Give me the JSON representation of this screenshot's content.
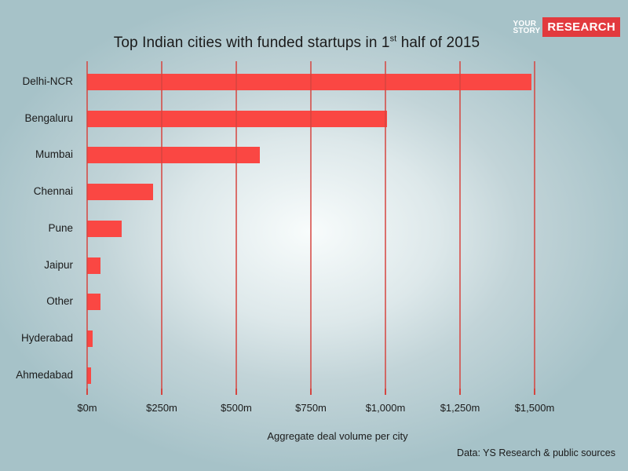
{
  "header": {
    "title": {
      "prefix": "Top Indian cities with funded startups in 1",
      "superscript": "st",
      "suffix": " half of 2015"
    },
    "logo": {
      "line1": "YOUR",
      "line2": "STORY",
      "badge": "RESEARCH"
    }
  },
  "chart_data": {
    "type": "bar",
    "orientation": "horizontal",
    "title": "Top Indian cities with funded startups in 1st half of 2015",
    "categories": [
      "Delhi-NCR",
      "Bengaluru",
      "Mumbai",
      "Chennai",
      "Pune",
      "Jaipur",
      "Other",
      "Hyderabad",
      "Ahmedabad"
    ],
    "values": [
      1490,
      1005,
      580,
      220,
      115,
      46,
      44,
      18,
      13
    ],
    "value_unit": "$m",
    "xlabel": "Aggregate deal volume per city",
    "xlim": [
      0,
      1500
    ],
    "xticks": [
      0,
      250,
      500,
      750,
      1000,
      1250,
      1500
    ],
    "xtick_labels": [
      "$0m",
      "$250m",
      "$500m",
      "$750m",
      "$1,000m",
      "$1,250m",
      "$1,500m"
    ],
    "grid": true,
    "legend": false,
    "colors": {
      "bar": "#fa4743",
      "gridline": "#d5443f",
      "tick": "#d5443f",
      "text": "#1b1b1b"
    }
  },
  "footer": {
    "source": "Data: YS Research & public sources"
  },
  "background": {
    "center": "#f8fcfc",
    "edge": "#a6c2c8"
  }
}
